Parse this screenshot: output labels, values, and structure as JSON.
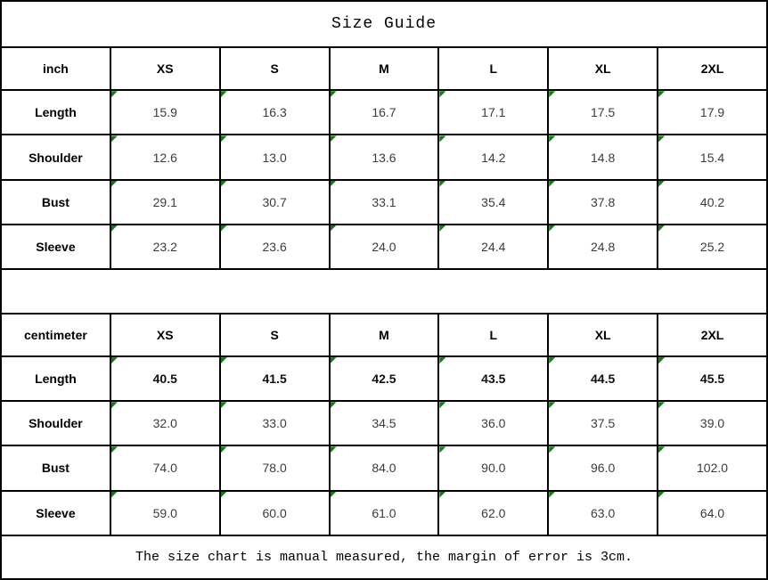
{
  "title": "Size Guide",
  "colors": {
    "border": "#000000",
    "background": "#ffffff",
    "flag_triangle_green": "#0c800c",
    "value_text": "#3c3c3c",
    "label_text": "#000000"
  },
  "icons": {
    "cell_flag": "green-corner-triangle"
  },
  "inch_section": {
    "unit": "inch",
    "sizes": [
      "XS",
      "S",
      "M",
      "L",
      "XL",
      "2XL"
    ],
    "rows": [
      {
        "label": "Length",
        "values": [
          "15.9",
          "16.3",
          "16.7",
          "17.1",
          "17.5",
          "17.9"
        ]
      },
      {
        "label": "Shoulder",
        "values": [
          "12.6",
          "13.0",
          "13.6",
          "14.2",
          "14.8",
          "15.4"
        ]
      },
      {
        "label": "Bust",
        "values": [
          "29.1",
          "30.7",
          "33.1",
          "35.4",
          "37.8",
          "40.2"
        ]
      },
      {
        "label": "Sleeve",
        "values": [
          "23.2",
          "23.6",
          "24.0",
          "24.4",
          "24.8",
          "25.2"
        ]
      }
    ]
  },
  "cm_section": {
    "unit": "centimeter",
    "sizes": [
      "XS",
      "S",
      "M",
      "L",
      "XL",
      "2XL"
    ],
    "rows": [
      {
        "label": "Length",
        "values": [
          "40.5",
          "41.5",
          "42.5",
          "43.5",
          "44.5",
          "45.5"
        ]
      },
      {
        "label": "Shoulder",
        "values": [
          "32.0",
          "33.0",
          "34.5",
          "36.0",
          "37.5",
          "39.0"
        ]
      },
      {
        "label": "Bust",
        "values": [
          "74.0",
          "78.0",
          "84.0",
          "90.0",
          "96.0",
          "102.0"
        ]
      },
      {
        "label": "Sleeve",
        "values": [
          "59.0",
          "60.0",
          "61.0",
          "62.0",
          "63.0",
          "64.0"
        ]
      }
    ]
  },
  "footer_note": "The size chart is manual measured, the margin of error is 3cm."
}
